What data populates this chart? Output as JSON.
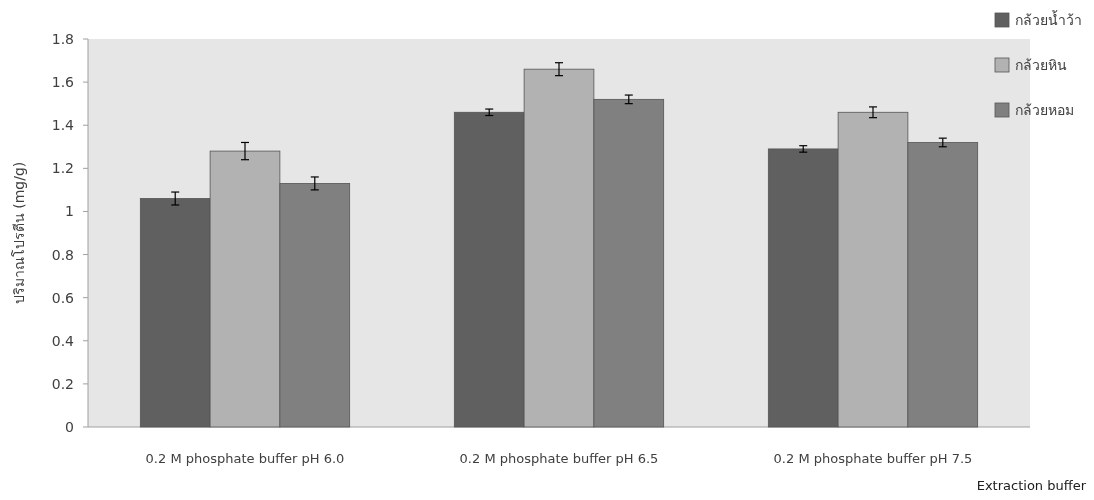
{
  "chart_data": {
    "type": "bar",
    "ylabel": "ปริมาณโปรตีน (mg/g)",
    "xlabel": "Extraction buffer",
    "categories": [
      "0.2 M phosphate buffer pH 6.0",
      "0.2 M phosphate buffer pH 6.5",
      "0.2 M phosphate buffer pH 7.5"
    ],
    "series": [
      {
        "name": "กล้วยน้ำว้า",
        "color": "#606060",
        "values": [
          1.06,
          1.46,
          1.29
        ],
        "errors": [
          0.03,
          0.015,
          0.015
        ]
      },
      {
        "name": "กล้วยหิน",
        "color": "#b2b2b2",
        "values": [
          1.28,
          1.66,
          1.46
        ],
        "errors": [
          0.04,
          0.03,
          0.025
        ]
      },
      {
        "name": "กล้วยหอม",
        "color": "#808080",
        "values": [
          1.13,
          1.52,
          1.32
        ],
        "errors": [
          0.03,
          0.02,
          0.02
        ]
      }
    ],
    "ylim": [
      0,
      1.8
    ],
    "yticks": [
      0,
      0.2,
      0.4,
      0.6,
      0.8,
      1,
      1.2,
      1.4,
      1.6,
      1.8
    ],
    "grid": false,
    "legend": "top right"
  }
}
